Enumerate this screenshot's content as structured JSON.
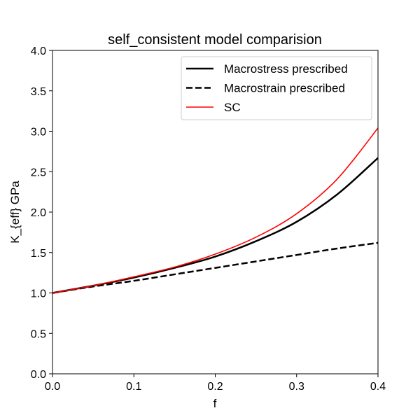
{
  "chart_data": {
    "type": "line",
    "title": "self_consistent model comparision",
    "xlabel": "f",
    "ylabel": "K_{eff} GPa",
    "xlim": [
      0.0,
      0.4
    ],
    "ylim": [
      0.0,
      4.0
    ],
    "xticks": [
      0.0,
      0.1,
      0.2,
      0.3,
      0.4
    ],
    "xtick_labels": [
      "0.0",
      "0.1",
      "0.2",
      "0.3",
      "0.4"
    ],
    "yticks": [
      0.0,
      0.5,
      1.0,
      1.5,
      2.0,
      2.5,
      3.0,
      3.5,
      4.0
    ],
    "ytick_labels": [
      "0.0",
      "0.5",
      "1.0",
      "1.5",
      "2.0",
      "2.5",
      "3.0",
      "3.5",
      "4.0"
    ],
    "grid": false,
    "legend_position": "top-right",
    "x": [
      0.0,
      0.05,
      0.1,
      0.15,
      0.2,
      0.25,
      0.3,
      0.35,
      0.4
    ],
    "series": [
      {
        "name": "Macrostress prescribed",
        "color": "#000000",
        "linestyle": "solid",
        "values": [
          1.0,
          1.09,
          1.19,
          1.31,
          1.45,
          1.64,
          1.88,
          2.22,
          2.67
        ]
      },
      {
        "name": "Macrostrain prescribed",
        "color": "#000000",
        "linestyle": "dashed",
        "values": [
          1.0,
          1.08,
          1.15,
          1.23,
          1.31,
          1.39,
          1.47,
          1.55,
          1.62
        ]
      },
      {
        "name": "SC",
        "color": "#ff0000",
        "linestyle": "solid",
        "values": [
          1.0,
          1.09,
          1.2,
          1.32,
          1.48,
          1.69,
          1.98,
          2.41,
          3.04
        ]
      }
    ]
  }
}
